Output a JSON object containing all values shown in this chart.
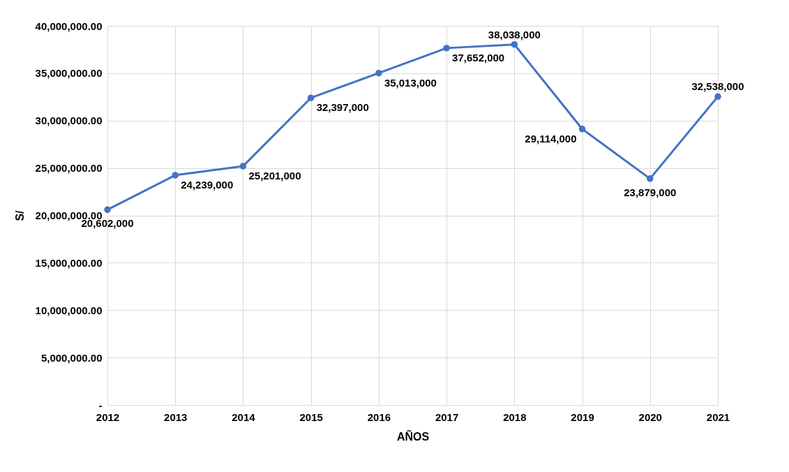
{
  "chart_data": {
    "type": "line",
    "xlabel": "AÑOS",
    "ylabel": "S/",
    "categories": [
      "2012",
      "2013",
      "2014",
      "2015",
      "2016",
      "2017",
      "2018",
      "2019",
      "2020",
      "2021"
    ],
    "series": [
      {
        "color": "#4472c4",
        "values": [
          20602000,
          24239000,
          25201000,
          32397000,
          35013000,
          37652000,
          38038000,
          29114000,
          23879000,
          32538000
        ],
        "value_labels": [
          "20,602,000",
          "24,239,000",
          "25,201,000",
          "32,397,000",
          "35,013,000",
          "37,652,000",
          "38,038,000",
          "29,114,000",
          "23,879,000",
          "32,538,000"
        ]
      }
    ],
    "ylim": [
      0,
      40000000
    ],
    "yticks": [
      {
        "value": 0,
        "label": "-"
      },
      {
        "value": 5000000,
        "label": "5,000,000.00"
      },
      {
        "value": 10000000,
        "label": "10,000,000.00"
      },
      {
        "value": 15000000,
        "label": "15,000,000.00"
      },
      {
        "value": 20000000,
        "label": "20,000,000.00"
      },
      {
        "value": 25000000,
        "label": "25,000,000.00"
      },
      {
        "value": 30000000,
        "label": "30,000,000.00"
      },
      {
        "value": 35000000,
        "label": "35,000,000.00"
      },
      {
        "value": 40000000,
        "label": "40,000,000.00"
      }
    ],
    "grid": true,
    "marker": "circle",
    "line_style": "solid"
  }
}
